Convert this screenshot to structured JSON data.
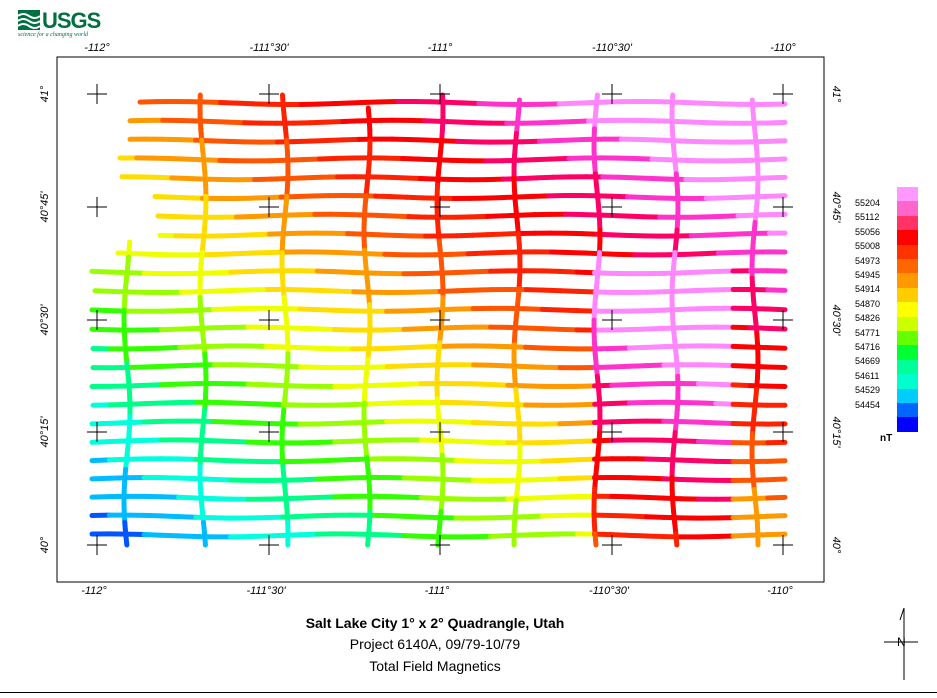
{
  "logo": {
    "text": "USGS",
    "tagline": "science for a changing world"
  },
  "map": {
    "lon_labels": [
      "-112°",
      "-111°30'",
      "-111°",
      "-110°30'",
      "-110°"
    ],
    "lat_labels": [
      "41°",
      "40°45'",
      "40°30'",
      "40°15'",
      "40°"
    ],
    "colors": {
      "frame": "#000000"
    }
  },
  "legend": {
    "values": [
      "55204",
      "55112",
      "55056",
      "55008",
      "54973",
      "54945",
      "54914",
      "54870",
      "54826",
      "54771",
      "54716",
      "54669",
      "54611",
      "54529",
      "54454"
    ],
    "colors": [
      "#ff99ff",
      "#ff66cc",
      "#ff3366",
      "#ff0000",
      "#ff3300",
      "#ff6600",
      "#ff9900",
      "#ffcc00",
      "#ffff00",
      "#ccff00",
      "#66ff00",
      "#00ff33",
      "#00ff99",
      "#00ffcc",
      "#00ccff",
      "#0066ff",
      "#0000ff"
    ],
    "unit": "nT"
  },
  "title": {
    "main": "Salt Lake City 1° x 2° Quadrangle, Utah",
    "project": "Project 6140A, 09/79-10/79",
    "subject": "Total Field Magnetics"
  }
}
